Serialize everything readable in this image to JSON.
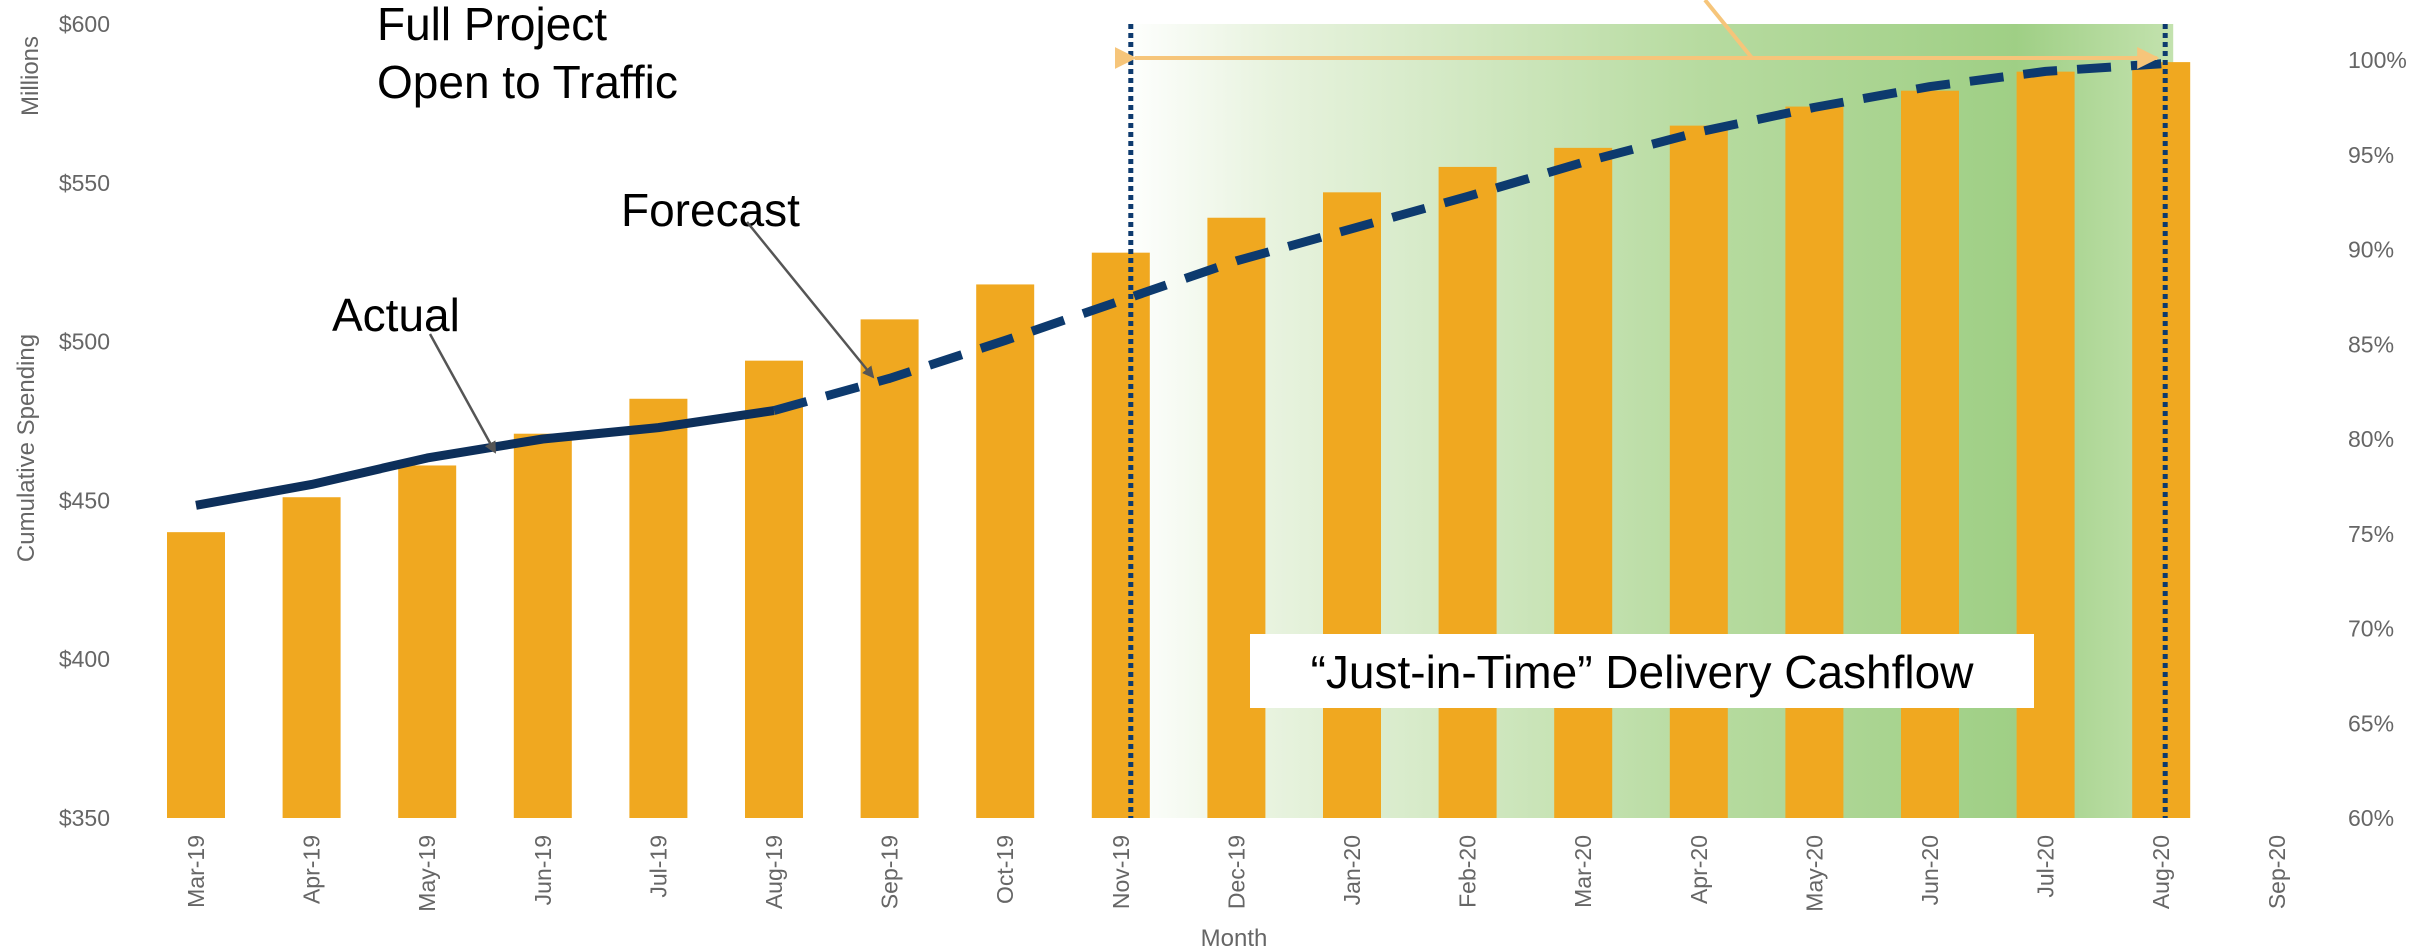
{
  "chart_data": {
    "type": "bar",
    "categories": [
      "Mar-19",
      "Apr-19",
      "May-19",
      "Jun-19",
      "Jul-19",
      "Aug-19",
      "Sep-19",
      "Oct-19",
      "Nov-19",
      "Dec-19",
      "Jan-20",
      "Feb-20",
      "Mar-20",
      "Apr-20",
      "May-20",
      "Jun-20",
      "Jul-20",
      "Aug-20",
      "Sep-20"
    ],
    "values": [
      440,
      451,
      461,
      471,
      482,
      494,
      507,
      518,
      528,
      539,
      547,
      555,
      561,
      568,
      574,
      579,
      585,
      588,
      null
    ],
    "ylabel": "Cumulative Spending",
    "ylabel_units": "Millions",
    "xlabel": "Month",
    "ylim": [
      350,
      600
    ],
    "yticks": [
      "$350",
      "$400",
      "$450",
      "$500",
      "$550",
      "$600"
    ],
    "y2lim": [
      60,
      102
    ],
    "y2ticks": [
      "60%",
      "65%",
      "70%",
      "75%",
      "80%",
      "85%",
      "90%",
      "95%",
      "100%"
    ],
    "series": [
      {
        "name": "Actual",
        "style": "solid",
        "axis": "right",
        "x": [
          "Mar-19",
          "Apr-19",
          "May-19",
          "Jun-19",
          "Jul-19",
          "Aug-19"
        ],
        "values": [
          76.5,
          77.6,
          79.0,
          80.0,
          80.6,
          81.5
        ]
      },
      {
        "name": "Forecast",
        "style": "dashed",
        "axis": "right",
        "x": [
          "Aug-19",
          "Sep-19",
          "Oct-19",
          "Nov-19",
          "Dec-19",
          "Jan-20",
          "Feb-20",
          "Mar-20",
          "Apr-20",
          "May-20",
          "Jun-20",
          "Jul-20",
          "Aug-20"
        ],
        "values": [
          81.5,
          83.2,
          85.2,
          87.3,
          89.4,
          91.1,
          92.8,
          94.6,
          96.2,
          97.5,
          98.6,
          99.4,
          99.8
        ]
      }
    ],
    "annotations": {
      "open_to_traffic_line1": "Full Project",
      "open_to_traffic_line2": "Open to Traffic",
      "forecast": "Forecast",
      "actual": "Actual",
      "jit_box": "“Just-in-Time” Delivery Cashflow"
    },
    "colors": {
      "bar": "#f0a820",
      "actual_line": "#0d2f5a",
      "forecast_line": "#0d3a6e",
      "vline": "#0d3a6e",
      "arrow": "#f6c57a",
      "band_light": "#e8f3df",
      "band_dark": "#9fcf85",
      "tick_text": "#666666"
    },
    "band_range": [
      "Nov-19",
      "Aug-20"
    ],
    "grid": false
  }
}
